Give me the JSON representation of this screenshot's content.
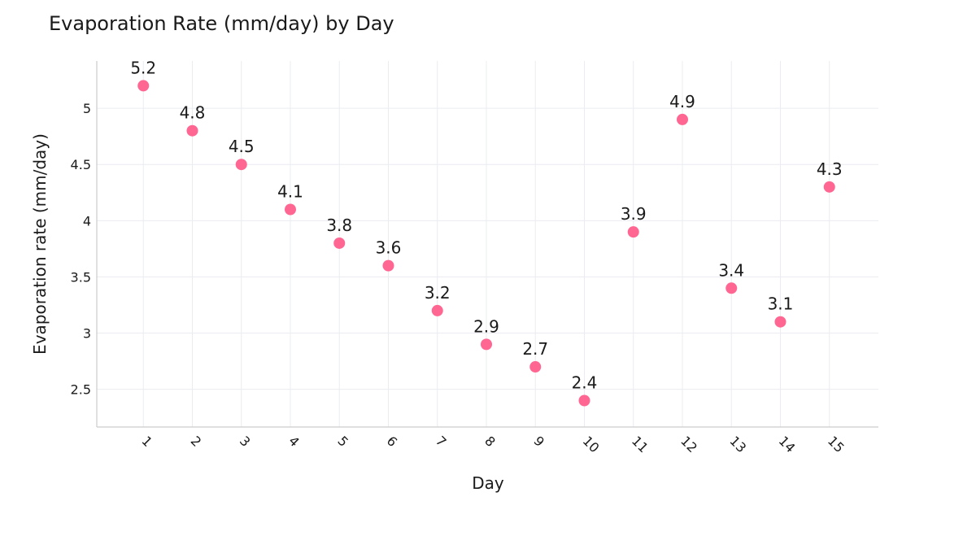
{
  "chart_data": {
    "type": "scatter",
    "title": "Evaporation Rate (mm/day) by Day",
    "xlabel": "Day",
    "ylabel": "Evaporation rate (mm/day)",
    "x": [
      1,
      2,
      3,
      4,
      5,
      6,
      7,
      8,
      9,
      10,
      11,
      12,
      13,
      14,
      15
    ],
    "y": [
      5.2,
      4.8,
      4.5,
      4.1,
      3.8,
      3.6,
      3.2,
      2.9,
      2.7,
      2.4,
      3.9,
      4.9,
      3.4,
      3.1,
      4.3
    ],
    "data_labels": [
      "5.2",
      "4.8",
      "4.5",
      "4.1",
      "3.8",
      "3.6",
      "3.2",
      "2.9",
      "2.7",
      "2.4",
      "3.9",
      "4.9",
      "3.4",
      "3.1",
      "4.3"
    ],
    "x_ticks": [
      "1",
      "2",
      "3",
      "4",
      "5",
      "6",
      "7",
      "8",
      "9",
      "10",
      "11",
      "12",
      "13",
      "14",
      "15"
    ],
    "y_ticks": [
      2.5,
      3,
      3.5,
      4,
      4.5,
      5
    ],
    "y_tick_labels": [
      "2.5",
      "3",
      "3.5",
      "4",
      "4.5",
      "5"
    ],
    "xlim": [
      0.05,
      16.0
    ],
    "ylim": [
      2.165,
      5.42
    ],
    "grid": true,
    "marker_color": "#ff6692"
  }
}
